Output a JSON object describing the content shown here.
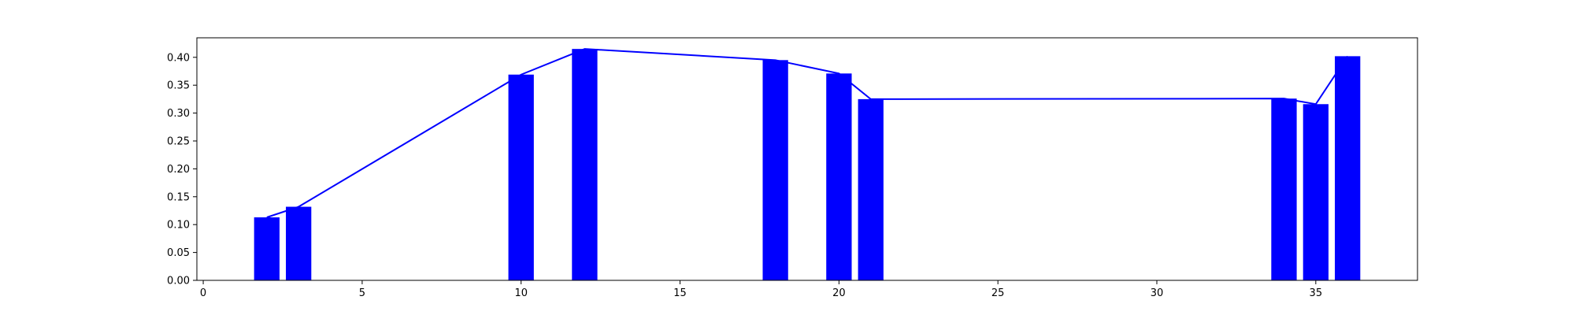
{
  "chart_data": {
    "type": "bar",
    "title": "",
    "xlabel": "",
    "ylabel": "",
    "grid": false,
    "xlim": [
      -0.2,
      38.2
    ],
    "ylim": [
      0,
      0.435
    ],
    "xticks": [
      "0",
      "5",
      "10",
      "15",
      "20",
      "25",
      "30",
      "35"
    ],
    "yticks": [
      "0.00",
      "0.05",
      "0.10",
      "0.15",
      "0.20",
      "0.25",
      "0.30",
      "0.35",
      "0.40"
    ],
    "bar_color": "#0000ff",
    "line_color": "#0000ff",
    "x": [
      2,
      3,
      10,
      12,
      18,
      20,
      21,
      34,
      35,
      36
    ],
    "values": [
      0.113,
      0.132,
      0.369,
      0.415,
      0.395,
      0.371,
      0.325,
      0.326,
      0.316,
      0.402
    ]
  }
}
